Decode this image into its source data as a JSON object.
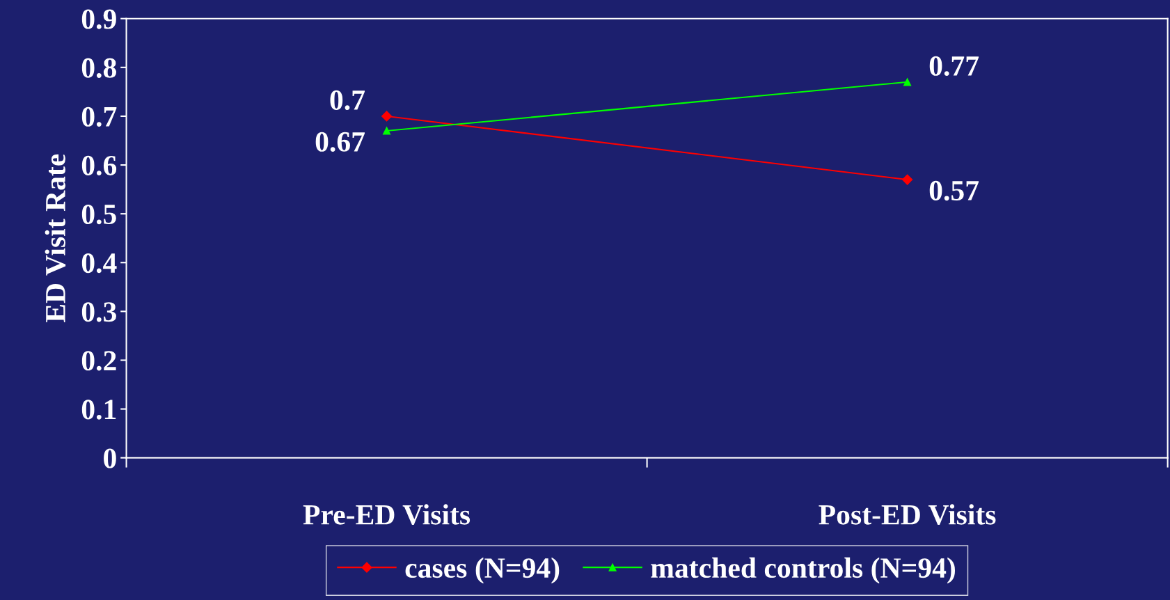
{
  "chart_data": {
    "type": "line",
    "ylabel": "ED Visit Rate",
    "categories": [
      "Pre-ED Visits",
      "Post-ED Visits"
    ],
    "series": [
      {
        "name": "cases (N=94)",
        "color": "#ff0000",
        "values": [
          0.7,
          0.57
        ],
        "marker": "diamond"
      },
      {
        "name": "matched controls (N=94)",
        "color": "#00ff00",
        "values": [
          0.67,
          0.77
        ],
        "marker": "triangle"
      }
    ],
    "ylim": [
      0,
      0.9
    ],
    "yticks": [
      0,
      0.1,
      0.2,
      0.3,
      0.4,
      0.5,
      0.6,
      0.7,
      0.8,
      0.9
    ],
    "grid": false,
    "legend": "bottom",
    "data_labels": true,
    "line_style": "solid"
  }
}
